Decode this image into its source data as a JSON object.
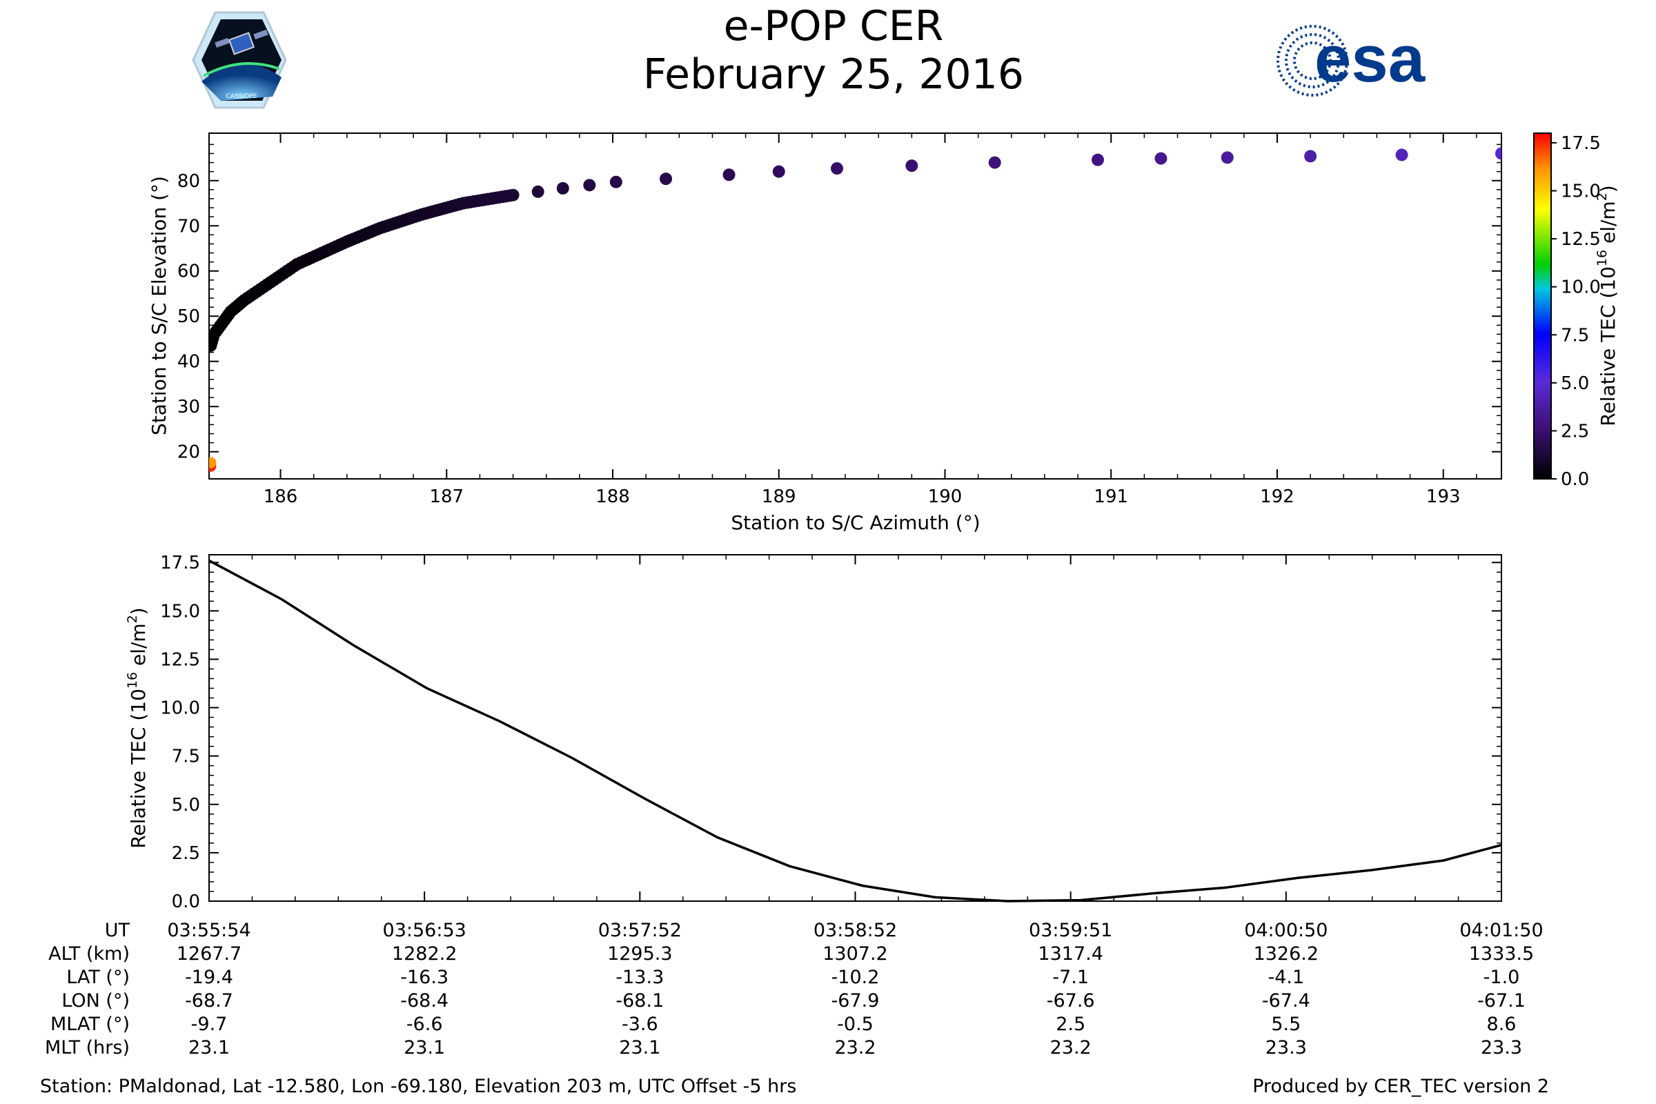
{
  "header": {
    "title_line1": "e-POP CER",
    "title_line2": "February 25, 2016",
    "left_logo": "cassiope-mission-logo",
    "left_logo_text": "CASSIOPE",
    "right_logo": "esa-logo",
    "right_logo_text": "esa"
  },
  "colors": {
    "esa_blue": "#003A8C",
    "tec_line": "#000000",
    "colormap": [
      "#000000",
      "#3b0f70",
      "#4b2bd6",
      "#0000ff",
      "#00c0ff",
      "#00ff00",
      "#ffff00",
      "#ff8000",
      "#ff0000"
    ]
  },
  "colorbar": {
    "label": "Relative TEC (10^16 el/m^2)",
    "ticks": [
      "0.0",
      "2.5",
      "5.0",
      "7.5",
      "10.0",
      "12.5",
      "15.0",
      "17.5"
    ],
    "range": [
      0,
      18
    ]
  },
  "chart_data": [
    {
      "type": "scatter",
      "xlabel": "Station to S/C Azimuth (°)",
      "ylabel": "Station to S/C Elevation (°)",
      "xlim": [
        185.57,
        193.35
      ],
      "ylim": [
        14,
        90.5
      ],
      "xticks": [
        186,
        187,
        188,
        189,
        190,
        191,
        192,
        193
      ],
      "yticks": [
        20,
        30,
        40,
        50,
        60,
        70,
        80
      ],
      "color_by": "Relative TEC",
      "points": [
        {
          "x": 185.58,
          "y": 16.8,
          "c": 17.5
        },
        {
          "x": 185.58,
          "y": 17.6,
          "c": 16.0
        },
        {
          "x": 185.58,
          "y": 43.5,
          "c": 0.1
        },
        {
          "x": 185.6,
          "y": 46,
          "c": 0.1
        },
        {
          "x": 185.65,
          "y": 48.5,
          "c": 0.1
        },
        {
          "x": 185.7,
          "y": 51,
          "c": 0.1
        },
        {
          "x": 185.78,
          "y": 53.5,
          "c": 0.1
        },
        {
          "x": 185.88,
          "y": 56,
          "c": 0.2
        },
        {
          "x": 186.0,
          "y": 59,
          "c": 0.2
        },
        {
          "x": 186.1,
          "y": 61.5,
          "c": 0.3
        },
        {
          "x": 186.25,
          "y": 64,
          "c": 0.4
        },
        {
          "x": 186.4,
          "y": 66.5,
          "c": 0.5
        },
        {
          "x": 186.6,
          "y": 69.5,
          "c": 0.6
        },
        {
          "x": 186.85,
          "y": 72.5,
          "c": 0.8
        },
        {
          "x": 187.1,
          "y": 75,
          "c": 1.0
        },
        {
          "x": 187.4,
          "y": 76.8,
          "c": 1.2
        },
        {
          "x": 187.7,
          "y": 78.3,
          "c": 1.4
        },
        {
          "x": 188.02,
          "y": 79.7,
          "c": 1.6
        },
        {
          "x": 188.32,
          "y": 80.4,
          "c": 1.7
        },
        {
          "x": 188.7,
          "y": 81.3,
          "c": 1.9
        },
        {
          "x": 189.0,
          "y": 82,
          "c": 2.1
        },
        {
          "x": 189.35,
          "y": 82.7,
          "c": 2.3
        },
        {
          "x": 189.8,
          "y": 83.3,
          "c": 2.5
        },
        {
          "x": 190.3,
          "y": 84,
          "c": 2.7
        },
        {
          "x": 190.92,
          "y": 84.6,
          "c": 3.0
        },
        {
          "x": 191.3,
          "y": 84.9,
          "c": 3.3
        },
        {
          "x": 191.7,
          "y": 85.1,
          "c": 3.6
        },
        {
          "x": 192.2,
          "y": 85.4,
          "c": 3.9
        },
        {
          "x": 192.75,
          "y": 85.7,
          "c": 4.3
        },
        {
          "x": 193.35,
          "y": 86.0,
          "c": 4.7
        }
      ]
    },
    {
      "type": "line",
      "xlabel": "",
      "ylabel": "Relative TEC (10^16 el/m^2)",
      "xlim": [
        0,
        356
      ],
      "ylim": [
        0,
        17.9
      ],
      "yticks": [
        "0.0",
        "2.5",
        "5.0",
        "7.5",
        "10.0",
        "12.5",
        "15.0",
        "17.5"
      ],
      "x": [
        0,
        20,
        40,
        60,
        80,
        100,
        120,
        140,
        160,
        180,
        200,
        220,
        240,
        260,
        280,
        300,
        320,
        340,
        356
      ],
      "y": [
        17.6,
        15.6,
        13.2,
        11.0,
        9.3,
        7.4,
        5.3,
        3.3,
        1.8,
        0.8,
        0.2,
        0.0,
        0.05,
        0.4,
        0.7,
        1.2,
        1.6,
        2.1,
        2.9
      ]
    }
  ],
  "table": {
    "row_labels": [
      "UT",
      "ALT (km)",
      "LAT (°)",
      "LON (°)",
      "MLAT (°)",
      "MLT (hrs)"
    ],
    "columns": [
      [
        "03:55:54",
        "1267.7",
        "-19.4",
        "-68.7",
        "-9.7",
        "23.1"
      ],
      [
        "03:56:53",
        "1282.2",
        "-16.3",
        "-68.4",
        "-6.6",
        "23.1"
      ],
      [
        "03:57:52",
        "1295.3",
        "-13.3",
        "-68.1",
        "-3.6",
        "23.1"
      ],
      [
        "03:58:52",
        "1307.2",
        "-10.2",
        "-67.9",
        "-0.5",
        "23.2"
      ],
      [
        "03:59:51",
        "1317.4",
        "-7.1",
        "-67.6",
        "2.5",
        "23.2"
      ],
      [
        "04:00:50",
        "1326.2",
        "-4.1",
        "-67.4",
        "5.5",
        "23.3"
      ],
      [
        "04:01:50",
        "1333.5",
        "-1.0",
        "-67.1",
        "8.6",
        "23.3"
      ]
    ]
  },
  "footer": {
    "station": "Station: PMaldonad, Lat -12.580, Lon -69.180, Elevation 203 m, UTC Offset -5 hrs",
    "produced": "Produced by CER_TEC version 2"
  }
}
